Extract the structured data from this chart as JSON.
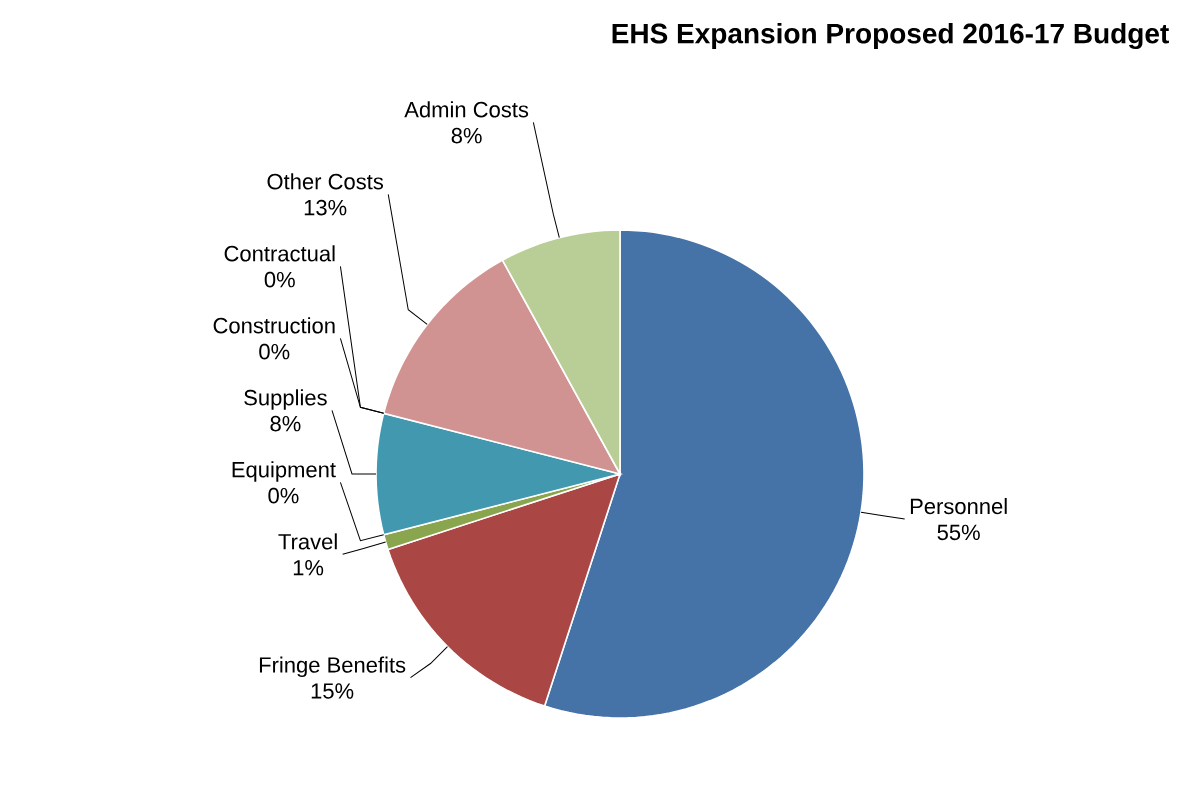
{
  "chart_data": {
    "type": "pie",
    "title": "EHS Expansion Proposed 2016-17 Budget",
    "categories": [
      "Personnel",
      "Fringe Benefits",
      "Travel",
      "Equipment",
      "Supplies",
      "Construction",
      "Contractual",
      "Other Costs",
      "Admin Costs"
    ],
    "values": [
      55,
      15,
      1,
      0,
      8,
      0,
      0,
      13,
      8
    ],
    "value_labels": [
      "55%",
      "15%",
      "1%",
      "0%",
      "8%",
      "0%",
      "0%",
      "13%",
      "8%"
    ],
    "colors": [
      "#4572a7",
      "#aa4643",
      "#89a54e",
      "#71588f",
      "#4198af",
      "#db843d",
      "#93a9cf",
      "#d19392",
      "#b9cd96"
    ]
  }
}
